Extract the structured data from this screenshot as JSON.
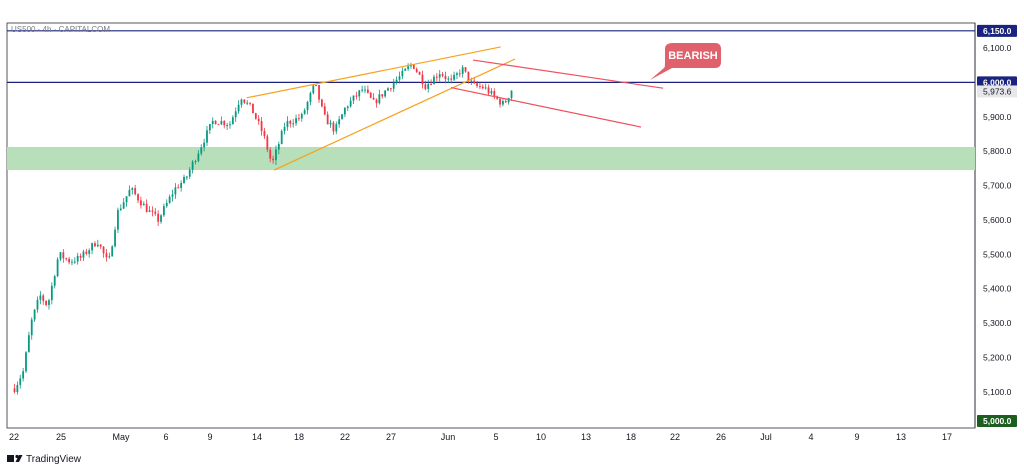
{
  "chart_data": {
    "type": "candlestick",
    "title": "US500 · 4h · CAPITALCOM",
    "xlabel": "",
    "ylabel": "",
    "ylim": [
      5025,
      6162
    ],
    "grid": false,
    "x_tick_labels": [
      "22",
      "25",
      "May",
      "6",
      "9",
      "14",
      "18",
      "22",
      "27",
      "Jun",
      "5",
      "10",
      "13",
      "18",
      "22",
      "26",
      "Jul",
      "4",
      "9",
      "13",
      "17"
    ],
    "y_ticks": [
      6100,
      6000,
      5900,
      5800,
      5700,
      5600,
      5500,
      5400,
      5300,
      5200,
      5100
    ],
    "y_tick_labels": [
      "6,100.0",
      "6,000.0",
      "5,900.0",
      "5,800.0",
      "5,700.0",
      "5,600.0",
      "5,500.0",
      "5,400.0",
      "5,300.0",
      "5,200.0",
      "5,100.0"
    ],
    "horizontal_levels": [
      {
        "value": 6150,
        "label": "6,150.0",
        "color": "#1a237e"
      },
      {
        "value": 6000,
        "label": "6,000.0",
        "color": "#1a237e"
      },
      {
        "value": 5000,
        "label": "5,000.0",
        "color": "#1b5e20"
      }
    ],
    "last_price": {
      "value": 5973.6,
      "label": "5,973.6"
    },
    "support_zone": {
      "from": 5745,
      "to": 5812,
      "color": "#b7dfb9"
    },
    "trendlines": [
      {
        "name": "wedge-upper",
        "color": "#f7a21b",
        "points": [
          [
            21.0,
            5955
          ],
          [
            44.0,
            6103
          ]
        ]
      },
      {
        "name": "wedge-lower",
        "color": "#f7a21b",
        "points": [
          [
            23.5,
            5745
          ],
          [
            45.3,
            6068
          ]
        ]
      },
      {
        "name": "channel-upper",
        "color": "#f0505d",
        "points": [
          [
            41.5,
            6065
          ],
          [
            58.7,
            5983
          ]
        ]
      },
      {
        "name": "channel-lower",
        "color": "#f0505d",
        "points": [
          [
            39.5,
            5985
          ],
          [
            56.7,
            5870
          ]
        ]
      }
    ],
    "annotation": {
      "text": "BEARISH",
      "color": "#e0606b"
    },
    "waypoints": [
      [
        0.0,
        5110
      ],
      [
        0.8,
        5160
      ],
      [
        1.5,
        5300
      ],
      [
        2.3,
        5380
      ],
      [
        3.0,
        5350
      ],
      [
        4.0,
        5500
      ],
      [
        5.0,
        5480
      ],
      [
        6.0,
        5490
      ],
      [
        7.5,
        5540
      ],
      [
        8.5,
        5470
      ],
      [
        9.3,
        5620
      ],
      [
        10.5,
        5690
      ],
      [
        12.0,
        5630
      ],
      [
        13.0,
        5600
      ],
      [
        14.5,
        5690
      ],
      [
        15.5,
        5720
      ],
      [
        16.5,
        5790
      ],
      [
        18.0,
        5890
      ],
      [
        19.5,
        5880
      ],
      [
        20.5,
        5960
      ],
      [
        21.5,
        5920
      ],
      [
        22.5,
        5850
      ],
      [
        23.3,
        5760
      ],
      [
        24.5,
        5880
      ],
      [
        26.0,
        5900
      ],
      [
        27.2,
        5995
      ],
      [
        28.0,
        5900
      ],
      [
        29.0,
        5860
      ],
      [
        30.0,
        5930
      ],
      [
        31.5,
        5980
      ],
      [
        32.5,
        5940
      ],
      [
        34.0,
        5990
      ],
      [
        35.0,
        6020
      ],
      [
        36.0,
        6055
      ],
      [
        37.2,
        5990
      ],
      [
        38.5,
        6030
      ],
      [
        39.5,
        6000
      ],
      [
        40.5,
        6040
      ],
      [
        41.5,
        5990
      ],
      [
        42.5,
        5985
      ],
      [
        43.5,
        5955
      ],
      [
        44.3,
        5935
      ],
      [
        45.0,
        5980
      ]
    ],
    "symbol_label": "US500 · 4h · CAPITALCOM",
    "brand": "TradingView"
  }
}
